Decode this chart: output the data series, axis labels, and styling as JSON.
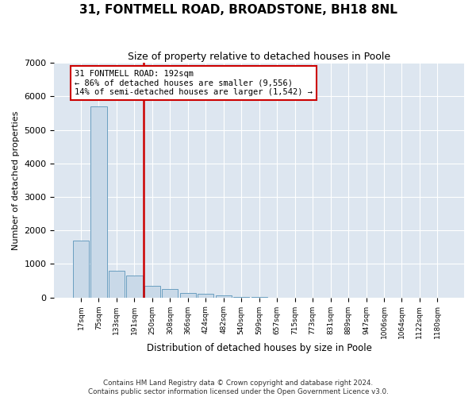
{
  "title": "31, FONTMELL ROAD, BROADSTONE, BH18 8NL",
  "subtitle": "Size of property relative to detached houses in Poole",
  "xlabel": "Distribution of detached houses by size in Poole",
  "ylabel": "Number of detached properties",
  "footnote1": "Contains HM Land Registry data © Crown copyright and database right 2024.",
  "footnote2": "Contains public sector information licensed under the Open Government Licence v3.0.",
  "property_label": "31 FONTMELL ROAD: 192sqm",
  "annotation_line1": "← 86% of detached houses are smaller (9,556)",
  "annotation_line2": "14% of semi-detached houses are larger (1,542) →",
  "bar_color": "#c9d9e8",
  "bar_edge_color": "#6a9fc0",
  "marker_color": "#cc0000",
  "annotation_box_color": "#cc0000",
  "background_color": "#dde6f0",
  "ylim": [
    0,
    7000
  ],
  "yticks": [
    0,
    1000,
    2000,
    3000,
    4000,
    5000,
    6000,
    7000
  ],
  "bin_labels": [
    "17sqm",
    "75sqm",
    "133sqm",
    "191sqm",
    "250sqm",
    "308sqm",
    "366sqm",
    "424sqm",
    "482sqm",
    "540sqm",
    "599sqm",
    "657sqm",
    "715sqm",
    "773sqm",
    "831sqm",
    "889sqm",
    "947sqm",
    "1006sqm",
    "1064sqm",
    "1122sqm",
    "1180sqm"
  ],
  "bar_values": [
    1700,
    5700,
    800,
    650,
    350,
    250,
    130,
    100,
    50,
    10,
    5,
    2,
    1,
    0,
    0,
    0,
    0,
    0,
    0,
    0,
    0
  ],
  "property_bin_index": 3,
  "red_line_x": 3.5
}
